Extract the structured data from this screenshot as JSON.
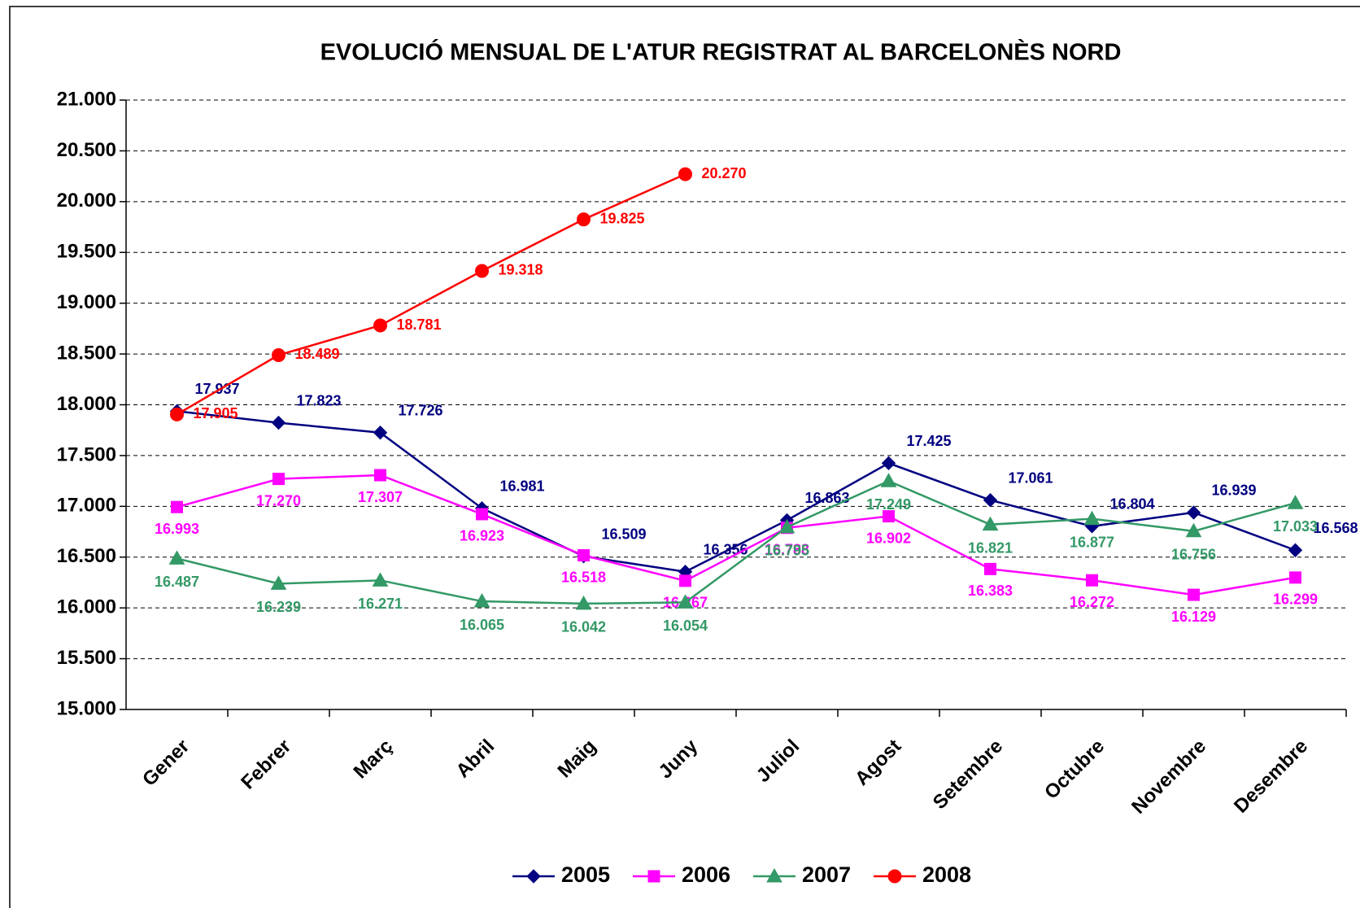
{
  "chart_data": {
    "type": "line",
    "title": "EVOLUCIÓ MENSUAL DE L'ATUR REGISTRAT AL BARCELONÈS NORD",
    "categories": [
      "Gener",
      "Febrer",
      "Març",
      "Abril",
      "Maig",
      "Juny",
      "Juliol",
      "Agost",
      "Setembre",
      "Octubre",
      "Novembre",
      "Desembre"
    ],
    "series": [
      {
        "name": "2005",
        "color": "#000080",
        "marker": "diamond",
        "values": [
          17937,
          17823,
          17726,
          16981,
          16509,
          16356,
          16863,
          17425,
          17061,
          16804,
          16939,
          16568
        ],
        "value_labels": [
          "17.937",
          "17.823",
          "17.726",
          "16.981",
          "16.509",
          "16.356",
          "16.863",
          "17.425",
          "17.061",
          "16.804",
          "16.939",
          "16.568"
        ]
      },
      {
        "name": "2006",
        "color": "#ff00ff",
        "marker": "square",
        "values": [
          16993,
          17270,
          17307,
          16923,
          16518,
          16267,
          16788,
          16902,
          16383,
          16272,
          16129,
          16299
        ],
        "value_labels": [
          "16.993",
          "17.270",
          "17.307",
          "16.923",
          "16.518",
          "16.267",
          "16.788",
          "16.902",
          "16.383",
          "16.272",
          "16.129",
          "16.299"
        ]
      },
      {
        "name": "2007",
        "color": "#339966",
        "marker": "triangle",
        "values": [
          16487,
          16239,
          16271,
          16065,
          16042,
          16054,
          16795,
          17249,
          16821,
          16877,
          16756,
          17033
        ],
        "value_labels": [
          "16.487",
          "16.239",
          "16.271",
          "16.065",
          "16.042",
          "16.054",
          "16.795",
          "17.249",
          "16.821",
          "16.877",
          "16.756",
          "17.033"
        ]
      },
      {
        "name": "2008",
        "color": "#ff0000",
        "marker": "circle",
        "values": [
          17905,
          18489,
          18781,
          19318,
          19825,
          20270,
          null,
          null,
          null,
          null,
          null,
          null
        ],
        "value_labels": [
          "17.905",
          "18.489",
          "18.781",
          "19.318",
          "19.825",
          "20.270",
          null,
          null,
          null,
          null,
          null,
          null
        ]
      }
    ],
    "ylim": [
      15000,
      21000
    ],
    "yticks": [
      {
        "value": 15000,
        "label": "15.000"
      },
      {
        "value": 15500,
        "label": "15.500"
      },
      {
        "value": 16000,
        "label": "16.000"
      },
      {
        "value": 16500,
        "label": "16.500"
      },
      {
        "value": 17000,
        "label": "17.000"
      },
      {
        "value": 17500,
        "label": "17.500"
      },
      {
        "value": 18000,
        "label": "18.000"
      },
      {
        "value": 18500,
        "label": "18.500"
      },
      {
        "value": 19000,
        "label": "19.000"
      },
      {
        "value": 19500,
        "label": "19.500"
      },
      {
        "value": 20000,
        "label": "20.000"
      },
      {
        "value": 20500,
        "label": "20.500"
      },
      {
        "value": 21000,
        "label": "21.000"
      }
    ],
    "grid": true,
    "legend": "bottom"
  }
}
